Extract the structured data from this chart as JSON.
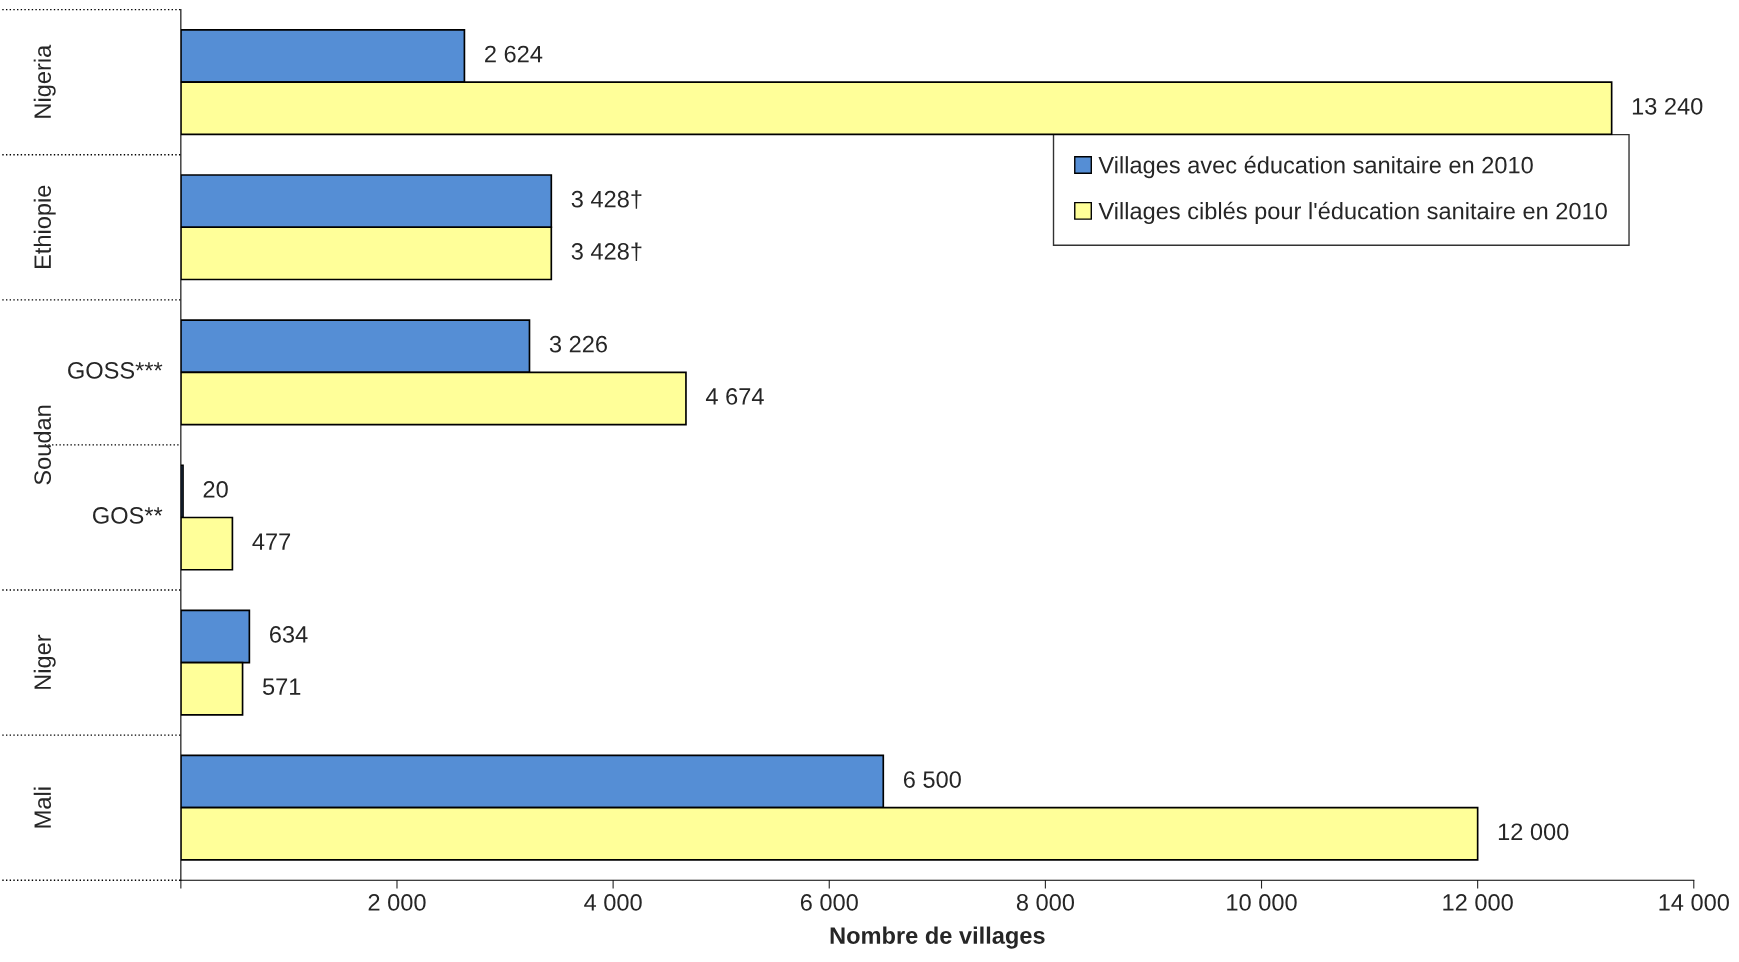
{
  "chart_data": {
    "type": "bar",
    "orientation": "horizontal",
    "xlabel": "Nombre de villages",
    "categories": [
      "Nigeria",
      "Ethiopie",
      "GOSS***",
      "GOS**",
      "Niger",
      "Mali"
    ],
    "series": [
      {
        "name": "Villages avec éducation sanitaire en 2010",
        "color": "#558ed5",
        "values": [
          2624,
          3428,
          3226,
          20,
          634,
          6500
        ],
        "value_labels": [
          "2 624",
          "3 428†",
          "3 226",
          "20",
          "634",
          "6 500"
        ]
      },
      {
        "name": "Villages ciblés pour l'éducation sanitaire en 2010",
        "color": "#ffff99",
        "values": [
          13240,
          3428,
          4674,
          477,
          571,
          12000
        ],
        "value_labels": [
          "13 240",
          "3 428†",
          "4 674",
          "477",
          "571",
          "12 000"
        ]
      }
    ],
    "annotations": [
      "Soudan"
    ],
    "xlim": [
      0,
      14000
    ],
    "xticks": [
      {
        "value": 0,
        "label": null
      },
      {
        "value": 2000,
        "label": "2 000"
      },
      {
        "value": 4000,
        "label": "4 000"
      },
      {
        "value": 6000,
        "label": "6 000"
      },
      {
        "value": 8000,
        "label": "8 000"
      },
      {
        "value": 10000,
        "label": "10 000"
      },
      {
        "value": 12000,
        "label": "12 000"
      },
      {
        "value": 14000,
        "label": "14 000"
      }
    ],
    "grid": false,
    "legend": "top right"
  }
}
